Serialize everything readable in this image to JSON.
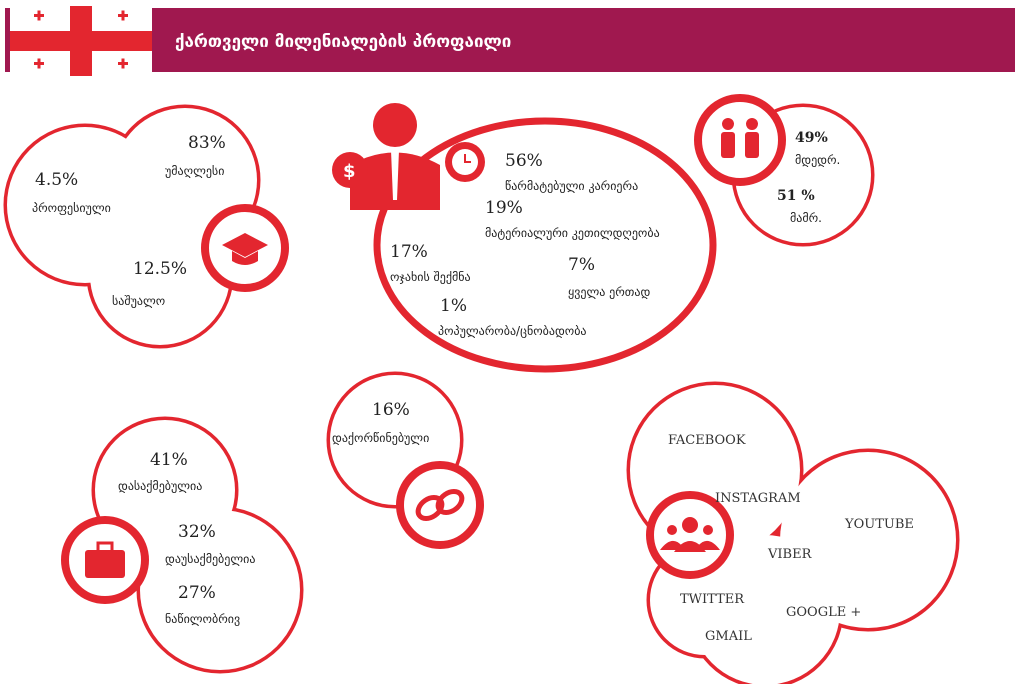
{
  "header": {
    "title": "ქართველი მილენიალების პროფაილი"
  },
  "education": [
    {
      "value": "83%",
      "label": "უმაღლესი"
    },
    {
      "value": "4.5%",
      "label": "პროფესიული"
    },
    {
      "value": "12.5%",
      "label": "საშუალო"
    }
  ],
  "goals": [
    {
      "value": "56%",
      "label": "წარმატებული კარიერა"
    },
    {
      "value": "19%",
      "label": "მატერიალური კეთილდღეობა"
    },
    {
      "value": "17%",
      "label": "ოჯახის შექმნა"
    },
    {
      "value": "7%",
      "label": "ყველა ერთად"
    },
    {
      "value": "1%",
      "label": "პოპულარობა/ცნობადობა"
    }
  ],
  "gender": [
    {
      "value": "49%",
      "label": "მდედრ."
    },
    {
      "value": "51 %",
      "label": "მამრ."
    }
  ],
  "marital": {
    "value": "16%",
    "label": "დაქორწინებული"
  },
  "employment": [
    {
      "value": "41%",
      "label": "დასაქმებულია"
    },
    {
      "value": "32%",
      "label": "დაუსაქმებელია"
    },
    {
      "value": "27%",
      "label": "ნაწილობრივ"
    }
  ],
  "social": [
    "FACEBOOK",
    "INSTAGRAM",
    "YOUTUBE",
    "VIBER",
    "TWITTER",
    "GOOGLE +",
    "GMAIL"
  ]
}
